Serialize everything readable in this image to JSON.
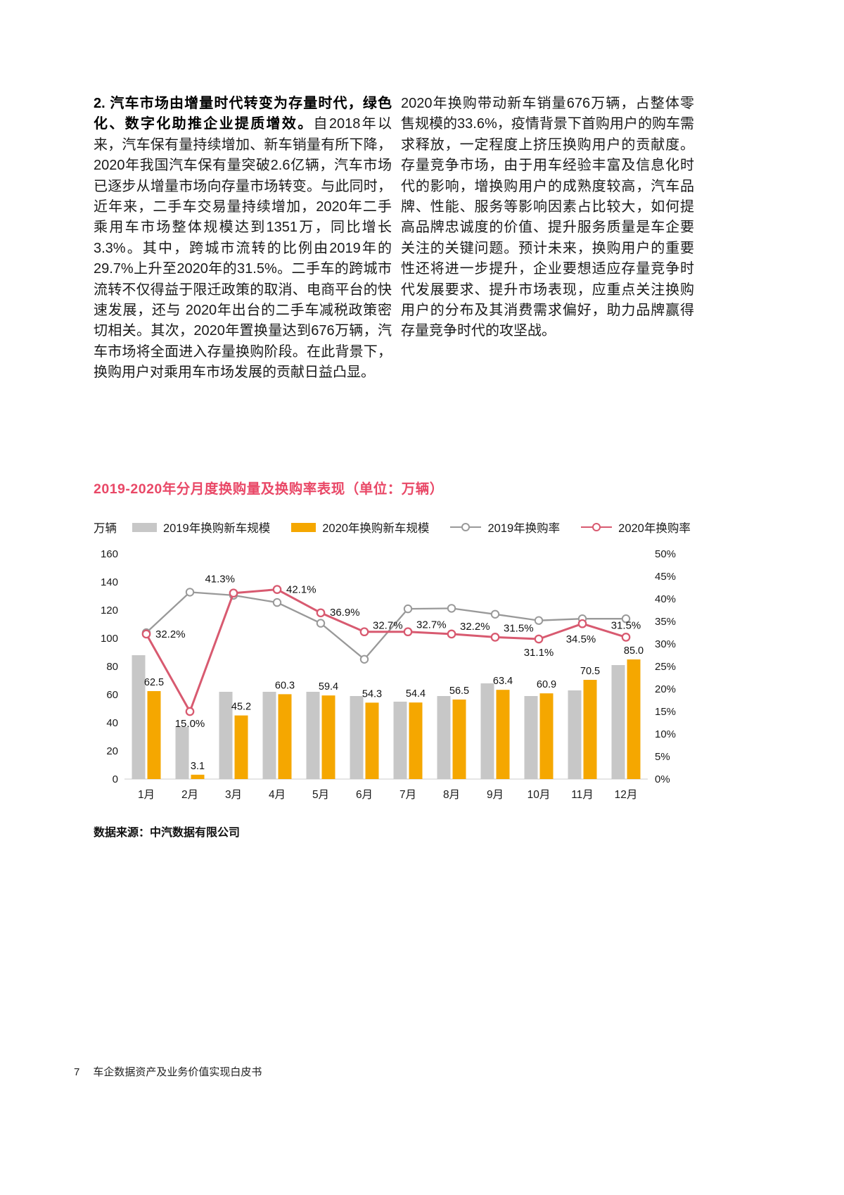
{
  "page": {
    "footer": {
      "page_number": "7",
      "title": "车企数据资产及业务价值实现白皮书"
    }
  },
  "article": {
    "left": {
      "lead": "2. 汽车市场由增量时代转变为存量时代，绿色化、数字化助推企业提质增效。",
      "body": "自2018年以来，汽车保有量持续增加、新车销量有所下降， 2020年我国汽车保有量突破2.6亿辆，汽车市场已逐步从增量市场向存量市场转变。与此同时，近年来，二手车交易量持续增加，2020年二手乘用车市场整体规模达到1351万，同比增长3.3%。其中，跨城市流转的比例由2019年的29.7%上升至2020年的31.5%。二手车的跨城市流转不仅得益于限迁政策的取消、电商平台的快速发展，还与 2020年出台的二手车减税政策密切相关。其次，2020年置换量达到676万辆，汽车市场将全面进入存量换购阶段。在此背景下，换购用户对乘用车市场发展的贡献日益凸显。"
    },
    "right": {
      "body": "2020年换购带动新车销量676万辆，占整体零售规模的33.6%，疫情背景下首购用户的购车需求释放，一定程度上挤压换购用户的贡献度。存量竞争市场，由于用车经验丰富及信息化时代的影响，增换购用户的成熟度较高，汽车品牌、性能、服务等影响因素占比较大，如何提高品牌忠诚度的价值、提升服务质量是车企要关注的关键问题。预计未来，换购用户的重要性还将进一步提升，企业要想适应存量竞争时代发展要求、提升市场表现，应重点关注换购用户的分布及其消费需求偏好，助力品牌赢得存量竞争时代的攻坚战。"
    }
  },
  "chart": {
    "title": "2019-2020年分月度换购量及换购率表现（单位：万辆）",
    "unit_label": "万辆",
    "source": "数据来源：中汽数据有限公司",
    "colors": {
      "title": "#e94867",
      "bar_2019": "#c7c7c7",
      "bar_2020": "#f5a700",
      "line_2019": "#999999",
      "line_2020": "#d85a70"
    },
    "legend": [
      {
        "label": "2019年换购新车规模",
        "type": "bar",
        "color": "#c7c7c7"
      },
      {
        "label": "2020年换购新车规模",
        "type": "bar",
        "color": "#f5a700"
      },
      {
        "label": "2019年换购率",
        "type": "line",
        "color": "#999999"
      },
      {
        "label": "2020年换购率",
        "type": "line",
        "color": "#d85a70"
      }
    ]
  },
  "chart_data": {
    "type": "combo-bar-line",
    "title": "2019-2020年分月度换购量及换购率表现（单位：万辆）",
    "categories": [
      "1月",
      "2月",
      "3月",
      "4月",
      "5月",
      "6月",
      "7月",
      "8月",
      "9月",
      "10月",
      "11月",
      "12月"
    ],
    "bar_series": [
      {
        "name": "2019年换购新车规模",
        "color": "#c7c7c7",
        "values": [
          88,
          37,
          62,
          62,
          62,
          59,
          55,
          59,
          68,
          59,
          63,
          81
        ]
      },
      {
        "name": "2020年换购新车规模",
        "color": "#f5a700",
        "values": [
          62.5,
          3.1,
          45.2,
          60.3,
          59.4,
          54.3,
          54.4,
          56.5,
          63.4,
          60.9,
          70.5,
          85.0
        ],
        "labels": [
          "62.5",
          "3.1",
          "45.2",
          "60.3",
          "59.4",
          "54.3",
          "54.4",
          "56.5",
          "63.4",
          "60.9",
          "70.5",
          "85.0"
        ]
      }
    ],
    "line_series": [
      {
        "name": "2019年换购率",
        "color": "#999999",
        "values": [
          32.5,
          41.5,
          40.8,
          39.2,
          34.6,
          26.6,
          37.8,
          37.9,
          36.6,
          35.2,
          35.6,
          35.6
        ]
      },
      {
        "name": "2020年换购率",
        "color": "#d85a70",
        "values": [
          32.2,
          15.0,
          41.3,
          42.1,
          36.9,
          32.7,
          32.7,
          32.2,
          31.5,
          31.1,
          34.5,
          31.5
        ],
        "labels": [
          "32.2%",
          "15.0%",
          "41.3%",
          "42.1%",
          "36.9%",
          "32.7%",
          "32.7%",
          "32.2%",
          "31.5%",
          "31.1%",
          "34.5%",
          "31.5%"
        ]
      }
    ],
    "left_axis": {
      "min": 0,
      "max": 160,
      "step": 20,
      "ticks": [
        "160",
        "140",
        "120",
        "100",
        "80",
        "60",
        "40",
        "20",
        "0"
      ]
    },
    "right_axis": {
      "min": 0,
      "max": 50,
      "step": 5,
      "ticks": [
        "50%",
        "45%",
        "40%",
        "35%",
        "30%",
        "25%",
        "20%",
        "15%",
        "10%",
        "5%",
        "0%"
      ]
    },
    "grid": false,
    "legend_position": "top"
  }
}
